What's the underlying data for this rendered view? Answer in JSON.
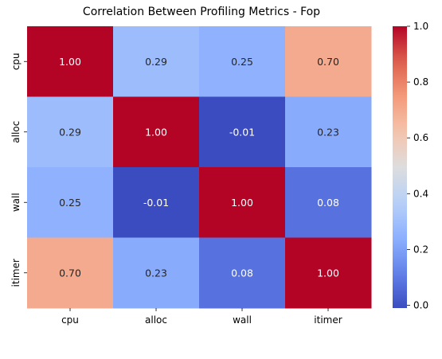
{
  "chart_data": {
    "type": "heatmap",
    "title": "Correlation Between Profiling Metrics - Fop",
    "x_labels": [
      "cpu",
      "alloc",
      "wall",
      "itimer"
    ],
    "y_labels": [
      "cpu",
      "alloc",
      "wall",
      "itimer"
    ],
    "values": [
      [
        1.0,
        0.29,
        0.25,
        0.7
      ],
      [
        0.29,
        1.0,
        -0.01,
        0.23
      ],
      [
        0.25,
        -0.01,
        1.0,
        0.08
      ],
      [
        0.7,
        0.23,
        0.08,
        1.0
      ]
    ],
    "cell_labels": [
      [
        "1.00",
        "0.29",
        "0.25",
        "0.70"
      ],
      [
        "0.29",
        "1.00",
        "-0.01",
        "0.23"
      ],
      [
        "0.25",
        "-0.01",
        "1.00",
        "0.08"
      ],
      [
        "0.70",
        "0.23",
        "0.08",
        "1.00"
      ]
    ],
    "colormap": "coolwarm",
    "colorbar": {
      "min": -0.01,
      "max": 1.0,
      "ticks": [
        0.0,
        0.2,
        0.4,
        0.6,
        0.8,
        1.0
      ],
      "tick_labels": [
        "0.0",
        "0.2",
        "0.4",
        "0.6",
        "0.8",
        "1.0"
      ]
    },
    "xlabel": "",
    "ylabel": ""
  }
}
